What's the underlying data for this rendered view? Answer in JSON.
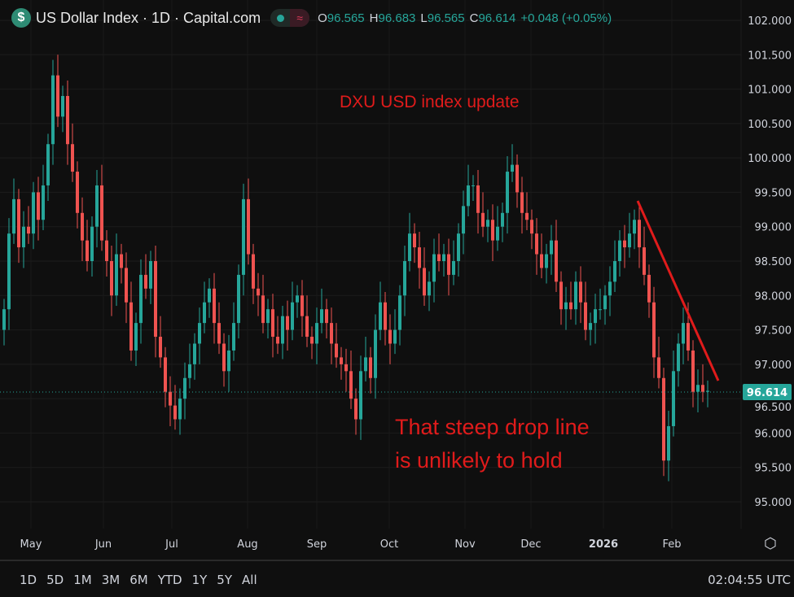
{
  "header": {
    "logo": "$",
    "title": "US Dollar Index · 1D · Capital.com",
    "market_status_icon": "green-dot-icon",
    "delay_icon": "wave-icon",
    "delay_glyph": "≈",
    "o_label": "O",
    "o_value": "96.565",
    "h_label": "H",
    "h_value": "96.683",
    "l_label": "L",
    "l_value": "96.565",
    "c_label": "C",
    "c_value": "96.614",
    "change": "+0.048 (+0.05%)"
  },
  "colors": {
    "up": "#26a69a",
    "down": "#ef5350",
    "annotation": "#e01b1b",
    "background": "#0f0f0f"
  },
  "chart_data": {
    "type": "candlestick",
    "symbol": "US Dollar Index",
    "interval": "1D",
    "ylim": [
      95.0,
      102.0
    ],
    "y_ticks": [
      "102.000",
      "101.500",
      "101.000",
      "100.500",
      "100.000",
      "99.500",
      "99.000",
      "98.500",
      "98.000",
      "97.500",
      "97.000",
      "96.500",
      "96.000",
      "95.500",
      "95.000"
    ],
    "x_ticks": [
      "May",
      "Jun",
      "Jul",
      "Aug",
      "Sep",
      "Oct",
      "Nov",
      "Dec",
      "2026",
      "Feb"
    ],
    "first_open": 97.5,
    "closes": [
      97.8,
      98.9,
      99.4,
      98.7,
      99.0,
      98.9,
      99.5,
      99.1,
      99.6,
      100.2,
      101.2,
      100.6,
      100.9,
      100.2,
      99.8,
      99.2,
      98.8,
      98.5,
      99.0,
      99.6,
      98.8,
      98.5,
      98.0,
      98.6,
      98.4,
      97.9,
      97.2,
      97.6,
      98.3,
      98.1,
      98.5,
      97.4,
      97.1,
      96.6,
      96.4,
      96.2,
      96.5,
      96.8,
      97.0,
      97.3,
      97.6,
      97.9,
      98.1,
      97.6,
      97.3,
      96.9,
      97.2,
      97.6,
      98.3,
      99.4,
      98.6,
      98.1,
      98.0,
      97.6,
      97.8,
      97.4,
      97.3,
      97.7,
      97.5,
      97.9,
      98.0,
      97.7,
      97.4,
      97.3,
      97.6,
      97.8,
      97.6,
      97.3,
      97.1,
      97.0,
      96.9,
      96.5,
      96.2,
      96.9,
      97.1,
      96.8,
      97.5,
      97.9,
      97.5,
      97.3,
      97.5,
      98.0,
      98.5,
      98.9,
      98.7,
      98.4,
      98.0,
      98.2,
      98.6,
      98.5,
      98.6,
      98.3,
      98.5,
      98.9,
      99.3,
      99.6,
      99.6,
      99.2,
      99.0,
      99.1,
      98.8,
      99.0,
      99.2,
      99.8,
      99.9,
      99.5,
      99.2,
      99.1,
      98.9,
      98.6,
      98.4,
      98.6,
      98.8,
      98.2,
      97.8,
      97.9,
      97.8,
      98.2,
      97.9,
      97.5,
      97.6,
      97.8,
      97.8,
      98.0,
      98.2,
      98.5,
      98.8,
      98.7,
      98.9,
      99.1,
      98.7,
      98.3,
      97.9,
      97.1,
      96.8,
      95.6,
      96.1,
      96.9,
      97.3,
      97.6,
      97.2,
      96.6,
      96.7,
      96.6,
      96.614
    ],
    "wick": 0.15,
    "last_price": "96.614",
    "annotations": [
      {
        "text": "DXU USD index update"
      },
      {
        "text": "That steep drop line"
      },
      {
        "text": "is unlikely to hold"
      }
    ],
    "trendline": {
      "from_price": 99.4,
      "to_price": 96.8,
      "description": "descending red line"
    }
  },
  "footer": {
    "ranges": [
      "1D",
      "5D",
      "1M",
      "3M",
      "6M",
      "YTD",
      "1Y",
      "5Y",
      "All"
    ],
    "clock": "02:04:55 UTC",
    "settings_icon": "⬡"
  }
}
